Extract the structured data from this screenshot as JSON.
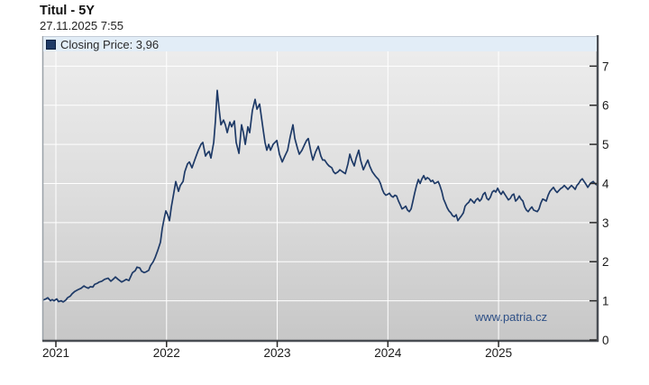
{
  "header": {
    "title": "Titul - 5Y",
    "timestamp": "27.11.2025 7:55"
  },
  "legend": {
    "label": "Closing Price: 3,96",
    "series_name": "Closing Price",
    "last_price": "3,96"
  },
  "watermark": "www.patria.cz",
  "colors": {
    "line": "#1e3a67",
    "legend_band_bg": "#e2edf7",
    "watermark_text": "#2d4f86",
    "plot_top": "#ececec",
    "plot_bottom": "#c7c7c7",
    "grid": "#ffffff",
    "frame_dark": "#4a4e54",
    "frame_light": "#9aa1a8"
  },
  "chart_data": {
    "type": "line",
    "title": "Titul - 5Y",
    "subtitle": "27.11.2025 7:55",
    "xlabel": "",
    "ylabel": "",
    "xlim": [
      2020.886,
      2025.887
    ],
    "ylim": [
      0,
      7.4
    ],
    "xticks": [
      2021,
      2022,
      2023,
      2024,
      2025
    ],
    "yticks": [
      0,
      1,
      2,
      3,
      4,
      5,
      6,
      7
    ],
    "grid": true,
    "legend_position": "top-left",
    "watermark": "www.patria.cz",
    "series": [
      {
        "name": "Closing Price",
        "color": "#1e3a67",
        "points": [
          [
            2020.886,
            1.02
          ],
          [
            2020.91,
            1.05
          ],
          [
            2020.927,
            1.08
          ],
          [
            2020.951,
            1.0
          ],
          [
            2020.967,
            1.03
          ],
          [
            2020.984,
            1.0
          ],
          [
            2021.008,
            1.05
          ],
          [
            2021.024,
            0.98
          ],
          [
            2021.049,
            1.0
          ],
          [
            2021.065,
            0.97
          ],
          [
            2021.09,
            1.02
          ],
          [
            2021.106,
            1.08
          ],
          [
            2021.13,
            1.12
          ],
          [
            2021.147,
            1.18
          ],
          [
            2021.171,
            1.24
          ],
          [
            2021.196,
            1.28
          ],
          [
            2021.228,
            1.32
          ],
          [
            2021.253,
            1.38
          ],
          [
            2021.269,
            1.35
          ],
          [
            2021.293,
            1.32
          ],
          [
            2021.31,
            1.36
          ],
          [
            2021.334,
            1.35
          ],
          [
            2021.35,
            1.42
          ],
          [
            2021.375,
            1.45
          ],
          [
            2021.391,
            1.48
          ],
          [
            2021.415,
            1.5
          ],
          [
            2021.44,
            1.55
          ],
          [
            2021.472,
            1.58
          ],
          [
            2021.497,
            1.5
          ],
          [
            2021.521,
            1.56
          ],
          [
            2021.538,
            1.61
          ],
          [
            2021.562,
            1.55
          ],
          [
            2021.595,
            1.48
          ],
          [
            2021.619,
            1.52
          ],
          [
            2021.635,
            1.55
          ],
          [
            2021.66,
            1.52
          ],
          [
            2021.692,
            1.72
          ],
          [
            2021.717,
            1.77
          ],
          [
            2021.733,
            1.86
          ],
          [
            2021.758,
            1.84
          ],
          [
            2021.774,
            1.76
          ],
          [
            2021.798,
            1.72
          ],
          [
            2021.815,
            1.74
          ],
          [
            2021.839,
            1.78
          ],
          [
            2021.855,
            1.9
          ],
          [
            2021.88,
            2.0
          ],
          [
            2021.896,
            2.1
          ],
          [
            2021.92,
            2.28
          ],
          [
            2021.945,
            2.5
          ],
          [
            2021.961,
            2.85
          ],
          [
            2021.978,
            3.1
          ],
          [
            2021.994,
            3.3
          ],
          [
            2022.01,
            3.2
          ],
          [
            2022.026,
            3.05
          ],
          [
            2022.043,
            3.4
          ],
          [
            2022.059,
            3.65
          ],
          [
            2022.083,
            4.05
          ],
          [
            2022.108,
            3.8
          ],
          [
            2022.124,
            3.95
          ],
          [
            2022.149,
            4.05
          ],
          [
            2022.165,
            4.3
          ],
          [
            2022.189,
            4.5
          ],
          [
            2022.206,
            4.55
          ],
          [
            2022.23,
            4.4
          ],
          [
            2022.254,
            4.6
          ],
          [
            2022.287,
            4.85
          ],
          [
            2022.311,
            5.0
          ],
          [
            2022.328,
            5.05
          ],
          [
            2022.352,
            4.7
          ],
          [
            2022.369,
            4.78
          ],
          [
            2022.385,
            4.82
          ],
          [
            2022.401,
            4.65
          ],
          [
            2022.426,
            5.05
          ],
          [
            2022.442,
            5.6
          ],
          [
            2022.458,
            6.38
          ],
          [
            2022.475,
            5.9
          ],
          [
            2022.491,
            5.5
          ],
          [
            2022.515,
            5.62
          ],
          [
            2022.531,
            5.5
          ],
          [
            2022.548,
            5.3
          ],
          [
            2022.572,
            5.57
          ],
          [
            2022.588,
            5.45
          ],
          [
            2022.613,
            5.6
          ],
          [
            2022.629,
            5.05
          ],
          [
            2022.654,
            4.77
          ],
          [
            2022.678,
            5.5
          ],
          [
            2022.694,
            5.3
          ],
          [
            2022.711,
            5.0
          ],
          [
            2022.735,
            5.45
          ],
          [
            2022.751,
            5.3
          ],
          [
            2022.776,
            5.87
          ],
          [
            2022.8,
            6.15
          ],
          [
            2022.817,
            5.9
          ],
          [
            2022.841,
            6.03
          ],
          [
            2022.857,
            5.7
          ],
          [
            2022.874,
            5.35
          ],
          [
            2022.89,
            5.05
          ],
          [
            2022.906,
            4.85
          ],
          [
            2022.923,
            5.0
          ],
          [
            2022.939,
            4.85
          ],
          [
            2022.963,
            5.0
          ],
          [
            2022.996,
            5.1
          ],
          [
            2023.02,
            4.75
          ],
          [
            2023.045,
            4.55
          ],
          [
            2023.069,
            4.7
          ],
          [
            2023.094,
            4.85
          ],
          [
            2023.118,
            5.2
          ],
          [
            2023.142,
            5.5
          ],
          [
            2023.159,
            5.15
          ],
          [
            2023.183,
            4.9
          ],
          [
            2023.199,
            4.75
          ],
          [
            2023.224,
            4.85
          ],
          [
            2023.248,
            5.0
          ],
          [
            2023.265,
            5.1
          ],
          [
            2023.281,
            5.15
          ],
          [
            2023.305,
            4.8
          ],
          [
            2023.322,
            4.6
          ],
          [
            2023.346,
            4.8
          ],
          [
            2023.371,
            4.95
          ],
          [
            2023.395,
            4.7
          ],
          [
            2023.411,
            4.6
          ],
          [
            2023.428,
            4.6
          ],
          [
            2023.452,
            4.5
          ],
          [
            2023.468,
            4.45
          ],
          [
            2023.493,
            4.4
          ],
          [
            2023.509,
            4.3
          ],
          [
            2023.525,
            4.25
          ],
          [
            2023.55,
            4.3
          ],
          [
            2023.566,
            4.35
          ],
          [
            2023.59,
            4.3
          ],
          [
            2023.615,
            4.25
          ],
          [
            2023.639,
            4.5
          ],
          [
            2023.656,
            4.75
          ],
          [
            2023.672,
            4.6
          ],
          [
            2023.696,
            4.45
          ],
          [
            2023.713,
            4.65
          ],
          [
            2023.737,
            4.85
          ],
          [
            2023.753,
            4.6
          ],
          [
            2023.778,
            4.35
          ],
          [
            2023.802,
            4.5
          ],
          [
            2023.819,
            4.6
          ],
          [
            2023.835,
            4.45
          ],
          [
            2023.859,
            4.3
          ],
          [
            2023.884,
            4.2
          ],
          [
            2023.9,
            4.15
          ],
          [
            2023.916,
            4.1
          ],
          [
            2023.933,
            4.0
          ],
          [
            2023.949,
            3.85
          ],
          [
            2023.965,
            3.75
          ],
          [
            2023.982,
            3.7
          ],
          [
            2023.998,
            3.72
          ],
          [
            2024.014,
            3.75
          ],
          [
            2024.031,
            3.68
          ],
          [
            2024.047,
            3.65
          ],
          [
            2024.063,
            3.7
          ],
          [
            2024.079,
            3.68
          ],
          [
            2024.096,
            3.55
          ],
          [
            2024.112,
            3.45
          ],
          [
            2024.128,
            3.35
          ],
          [
            2024.145,
            3.38
          ],
          [
            2024.161,
            3.42
          ],
          [
            2024.177,
            3.32
          ],
          [
            2024.194,
            3.28
          ],
          [
            2024.21,
            3.35
          ],
          [
            2024.226,
            3.55
          ],
          [
            2024.242,
            3.75
          ],
          [
            2024.259,
            3.95
          ],
          [
            2024.275,
            4.1
          ],
          [
            2024.291,
            4.0
          ],
          [
            2024.308,
            4.12
          ],
          [
            2024.324,
            4.2
          ],
          [
            2024.34,
            4.1
          ],
          [
            2024.356,
            4.15
          ],
          [
            2024.373,
            4.12
          ],
          [
            2024.389,
            4.05
          ],
          [
            2024.405,
            4.08
          ],
          [
            2024.422,
            4.0
          ],
          [
            2024.438,
            4.02
          ],
          [
            2024.454,
            4.05
          ],
          [
            2024.47,
            3.95
          ],
          [
            2024.487,
            3.8
          ],
          [
            2024.503,
            3.6
          ],
          [
            2024.519,
            3.5
          ],
          [
            2024.536,
            3.38
          ],
          [
            2024.552,
            3.3
          ],
          [
            2024.568,
            3.25
          ],
          [
            2024.584,
            3.18
          ],
          [
            2024.601,
            3.15
          ],
          [
            2024.617,
            3.2
          ],
          [
            2024.633,
            3.05
          ],
          [
            2024.65,
            3.12
          ],
          [
            2024.666,
            3.18
          ],
          [
            2024.682,
            3.25
          ],
          [
            2024.698,
            3.42
          ],
          [
            2024.715,
            3.48
          ],
          [
            2024.731,
            3.52
          ],
          [
            2024.747,
            3.6
          ],
          [
            2024.764,
            3.55
          ],
          [
            2024.78,
            3.5
          ],
          [
            2024.796,
            3.58
          ],
          [
            2024.812,
            3.62
          ],
          [
            2024.829,
            3.55
          ],
          [
            2024.845,
            3.6
          ],
          [
            2024.861,
            3.72
          ],
          [
            2024.878,
            3.77
          ],
          [
            2024.894,
            3.62
          ],
          [
            2024.91,
            3.58
          ],
          [
            2024.926,
            3.65
          ],
          [
            2024.943,
            3.78
          ],
          [
            2024.959,
            3.82
          ],
          [
            2024.975,
            3.78
          ],
          [
            2024.992,
            3.88
          ],
          [
            2025.008,
            3.78
          ],
          [
            2025.024,
            3.72
          ],
          [
            2025.04,
            3.8
          ],
          [
            2025.057,
            3.72
          ],
          [
            2025.073,
            3.65
          ],
          [
            2025.089,
            3.58
          ],
          [
            2025.106,
            3.62
          ],
          [
            2025.122,
            3.7
          ],
          [
            2025.138,
            3.73
          ],
          [
            2025.154,
            3.55
          ],
          [
            2025.171,
            3.6
          ],
          [
            2025.187,
            3.68
          ],
          [
            2025.203,
            3.6
          ],
          [
            2025.22,
            3.55
          ],
          [
            2025.236,
            3.4
          ],
          [
            2025.252,
            3.32
          ],
          [
            2025.268,
            3.28
          ],
          [
            2025.285,
            3.35
          ],
          [
            2025.301,
            3.4
          ],
          [
            2025.317,
            3.32
          ],
          [
            2025.334,
            3.3
          ],
          [
            2025.35,
            3.28
          ],
          [
            2025.366,
            3.35
          ],
          [
            2025.382,
            3.5
          ],
          [
            2025.399,
            3.6
          ],
          [
            2025.415,
            3.58
          ],
          [
            2025.431,
            3.55
          ],
          [
            2025.448,
            3.7
          ],
          [
            2025.464,
            3.8
          ],
          [
            2025.48,
            3.85
          ],
          [
            2025.496,
            3.9
          ],
          [
            2025.513,
            3.82
          ],
          [
            2025.529,
            3.77
          ],
          [
            2025.545,
            3.82
          ],
          [
            2025.562,
            3.87
          ],
          [
            2025.578,
            3.9
          ],
          [
            2025.594,
            3.95
          ],
          [
            2025.61,
            3.9
          ],
          [
            2025.627,
            3.85
          ],
          [
            2025.643,
            3.9
          ],
          [
            2025.659,
            3.95
          ],
          [
            2025.676,
            3.9
          ],
          [
            2025.692,
            3.85
          ],
          [
            2025.708,
            3.95
          ],
          [
            2025.724,
            4.0
          ],
          [
            2025.741,
            4.08
          ],
          [
            2025.757,
            4.12
          ],
          [
            2025.773,
            4.05
          ],
          [
            2025.79,
            3.98
          ],
          [
            2025.806,
            3.9
          ],
          [
            2025.822,
            3.97
          ],
          [
            2025.838,
            4.02
          ],
          [
            2025.855,
            4.05
          ],
          [
            2025.871,
            4.0
          ],
          [
            2025.887,
            3.96
          ]
        ]
      }
    ]
  }
}
